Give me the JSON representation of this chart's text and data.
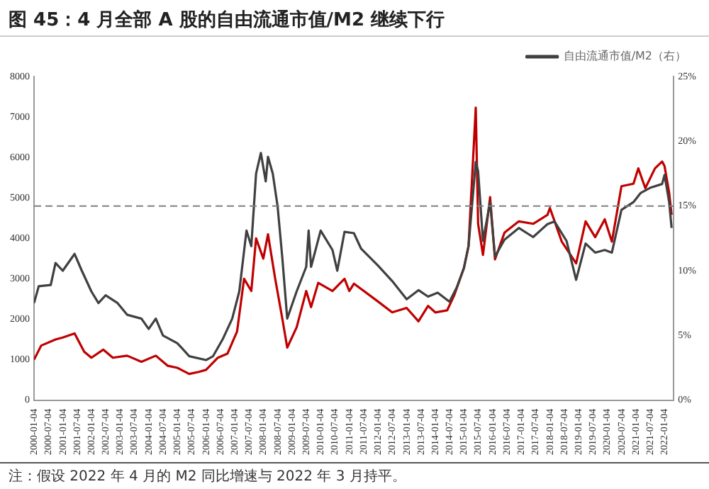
{
  "chart_data": {
    "type": "line",
    "title": "图 45：4 月全部 A 股的自由流通市值/M2 继续下行",
    "annotations": [
      "注：假设 2022 年 4 月的 M2 同比增速与 2022 年 3 月持平。"
    ],
    "series": [
      {
        "color": "#c00000",
        "x": [
          "2000-01",
          "2000-04",
          "2000-10",
          "2001-01",
          "2001-06",
          "2001-10",
          "2002-01",
          "2002-06",
          "2002-10",
          "2003-04",
          "2003-10",
          "2004-04",
          "2004-09",
          "2005-01",
          "2005-06",
          "2005-10",
          "2006-01",
          "2006-06",
          "2006-10",
          "2007-02",
          "2007-05",
          "2007-08",
          "2007-10",
          "2008-01",
          "2008-03",
          "2008-06",
          "2008-09",
          "2008-11",
          "2009-03",
          "2009-07",
          "2009-09",
          "2009-12",
          "2010-06",
          "2010-11",
          "2011-01",
          "2011-03",
          "2012-01",
          "2012-07",
          "2013-01",
          "2013-06",
          "2013-10",
          "2014-01",
          "2014-06",
          "2014-09",
          "2015-01",
          "2015-03",
          "2015-06",
          "2015-07",
          "2015-09",
          "2015-12",
          "2016-02",
          "2016-06",
          "2016-12",
          "2017-06",
          "2017-12",
          "2018-01",
          "2018-06",
          "2018-12",
          "2019-04",
          "2019-08",
          "2019-12",
          "2020-03",
          "2020-07",
          "2020-12",
          "2021-02",
          "2021-05",
          "2021-09",
          "2021-12",
          "2022-01",
          "2022-03",
          "2022-04"
        ],
        "values": [
          1000,
          1350,
          1500,
          1550,
          1650,
          1200,
          1050,
          1250,
          1050,
          1100,
          950,
          1100,
          850,
          800,
          650,
          700,
          750,
          1050,
          1150,
          1700,
          3000,
          2700,
          4000,
          3500,
          4100,
          3000,
          2000,
          1300,
          1800,
          2700,
          2300,
          2900,
          2700,
          3000,
          2700,
          2880,
          2440,
          2170,
          2280,
          1950,
          2330,
          2170,
          2220,
          2600,
          3270,
          3810,
          7230,
          4360,
          3590,
          5020,
          3480,
          4140,
          4420,
          4360,
          4580,
          4750,
          3920,
          3380,
          4420,
          4030,
          4470,
          3920,
          5290,
          5350,
          5730,
          5240,
          5730,
          5900,
          5790,
          5130,
          4580
        ]
      },
      {
        "name": "自由流通市值/M2（右）",
        "color": "#404040",
        "axis": "y2",
        "x": [
          "2000-01",
          "2000-03",
          "2000-08",
          "2000-10",
          "2001-01",
          "2001-06",
          "2001-09",
          "2002-01",
          "2002-04",
          "2002-07",
          "2002-12",
          "2003-04",
          "2003-10",
          "2004-01",
          "2004-04",
          "2004-07",
          "2005-01",
          "2005-06",
          "2006-01",
          "2006-04",
          "2006-08",
          "2006-12",
          "2007-03",
          "2007-06",
          "2007-08",
          "2007-10",
          "2007-12",
          "2008-02",
          "2008-03",
          "2008-05",
          "2008-07",
          "2008-09",
          "2008-11",
          "2009-03",
          "2009-07",
          "2009-08",
          "2009-09",
          "2010-01",
          "2010-06",
          "2010-08",
          "2010-11",
          "2011-03",
          "2011-06",
          "2012-01",
          "2012-07",
          "2013-01",
          "2013-06",
          "2013-10",
          "2014-02",
          "2014-07",
          "2014-10",
          "2015-01",
          "2015-03",
          "2015-06",
          "2015-07",
          "2015-09",
          "2015-12",
          "2016-02",
          "2016-06",
          "2016-12",
          "2017-06",
          "2017-12",
          "2018-03",
          "2018-08",
          "2018-12",
          "2019-04",
          "2019-08",
          "2019-12",
          "2020-03",
          "2020-07",
          "2020-12",
          "2021-03",
          "2021-07",
          "2021-12",
          "2022-01",
          "2022-03",
          "2022-04"
        ],
        "values": [
          7.5,
          8.8,
          8.9,
          10.6,
          10.0,
          11.3,
          10.0,
          8.4,
          7.5,
          8.1,
          7.5,
          6.6,
          6.3,
          5.5,
          6.3,
          5.0,
          4.4,
          3.4,
          3.1,
          3.4,
          4.7,
          6.3,
          8.4,
          13.1,
          11.9,
          17.5,
          19.1,
          16.9,
          18.8,
          17.5,
          15,
          10.9,
          6.3,
          8.4,
          10.3,
          13.1,
          10.3,
          13.1,
          11.6,
          10.0,
          13.0,
          12.9,
          11.7,
          10.4,
          9.2,
          7.8,
          8.5,
          8.0,
          8.3,
          7.6,
          8.7,
          10.2,
          11.9,
          18.4,
          17.7,
          12.3,
          15.3,
          11.1,
          12.4,
          13.3,
          12.6,
          13.6,
          13.8,
          12.3,
          9.3,
          12.1,
          11.4,
          11.6,
          11.4,
          14.7,
          15.3,
          16.0,
          16.4,
          16.7,
          17.4,
          15.3,
          13.3
        ]
      }
    ],
    "xlim": [
      "2000-01-01",
      "2022-04-29"
    ],
    "xticks": [
      "2000-01-04",
      "2000-07-04",
      "2001-01-04",
      "2001-07-04",
      "2002-01-04",
      "2002-07-04",
      "2003-01-04",
      "2003-07-04",
      "2004-01-04",
      "2004-07-04",
      "2005-01-04",
      "2005-07-04",
      "2006-01-04",
      "2006-07-04",
      "2007-01-04",
      "2007-07-04",
      "2008-01-04",
      "2008-07-04",
      "2009-01-04",
      "2009-07-04",
      "2010-01-04",
      "2010-07-04",
      "2011-01-04",
      "2011-07-04",
      "2012-01-04",
      "2012-07-04",
      "2013-01-04",
      "2013-07-04",
      "2014-01-04",
      "2014-07-04",
      "2015-01-04",
      "2015-07-04",
      "2016-01-04",
      "2016-07-04",
      "2017-01-04",
      "2017-07-04",
      "2018-01-04",
      "2018-07-04",
      "2019-01-04",
      "2019-07-04",
      "2020-01-04",
      "2020-07-04",
      "2021-01-04",
      "2021-07-04",
      "2022-01-04"
    ],
    "ylim": [
      0,
      8000
    ],
    "yticks": [
      0,
      1000,
      2000,
      3000,
      4000,
      5000,
      6000,
      7000,
      8000
    ],
    "y2lim": [
      0,
      25
    ],
    "y2ticks": [
      {
        "value": 0,
        "label": "0%"
      },
      {
        "value": 5,
        "label": "5%"
      },
      {
        "value": 10,
        "label": "10%"
      },
      {
        "value": 15,
        "label": "15%"
      },
      {
        "value": 20,
        "label": "20%"
      },
      {
        "value": 25,
        "label": "25%"
      }
    ],
    "ref_lines": [
      {
        "axis": "y2",
        "value": 15,
        "color": "#808080",
        "line_style": "dashed"
      }
    ],
    "grid": false,
    "legend": "top",
    "marker": "none",
    "line_style": "solid"
  }
}
